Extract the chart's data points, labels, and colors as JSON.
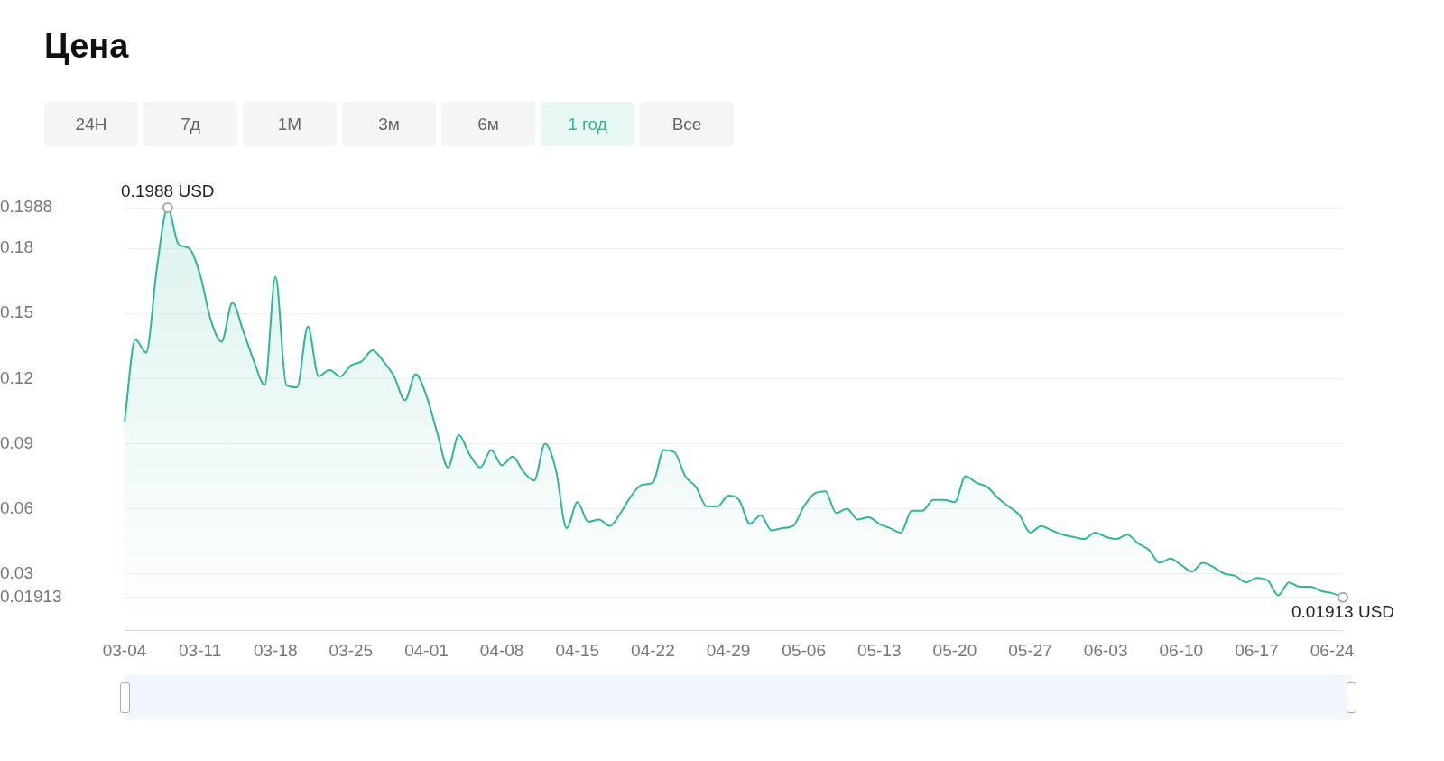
{
  "chart_data": {
    "type": "area",
    "title": "Цена",
    "annotations": [
      "24H",
      "7д",
      "1M",
      "3м",
      "6м",
      "1 год",
      "Все",
      {
        "text": "0.1988 USD",
        "y": 0.1988
      },
      {
        "text": "0.01913 USD",
        "y": 0.01913
      }
    ],
    "categories": [
      "03-04",
      null,
      null,
      null,
      null,
      null,
      null,
      "03-11",
      null,
      null,
      null,
      null,
      null,
      null,
      "03-18",
      null,
      null,
      null,
      null,
      null,
      null,
      "03-25",
      null,
      null,
      null,
      null,
      null,
      null,
      "04-01",
      null,
      null,
      null,
      null,
      null,
      null,
      "04-08",
      null,
      null,
      null,
      null,
      null,
      null,
      "04-15",
      null,
      null,
      null,
      null,
      null,
      null,
      "04-22",
      null,
      null,
      null,
      null,
      null,
      null,
      "04-29",
      null,
      null,
      null,
      null,
      null,
      null,
      "05-06",
      null,
      null,
      null,
      null,
      null,
      null,
      "05-13",
      null,
      null,
      null,
      null,
      null,
      null,
      "05-20",
      null,
      null,
      null,
      null,
      null,
      null,
      "05-27",
      null,
      null,
      null,
      null,
      null,
      null,
      "06-03",
      null,
      null,
      null,
      null,
      null,
      null,
      "06-10",
      null,
      null,
      null,
      null,
      null,
      null,
      "06-17",
      null,
      null,
      null,
      null,
      null,
      null,
      "06-24",
      null
    ],
    "series": [
      {
        "color": "#30b59c",
        "values": [
          0.1,
          0.138,
          0.132,
          0.171,
          0.1988,
          0.182,
          0.18,
          0.168,
          0.147,
          0.137,
          0.155,
          0.142,
          0.128,
          0.117,
          0.167,
          0.117,
          0.116,
          0.144,
          0.121,
          0.124,
          0.121,
          0.126,
          0.128,
          0.133,
          0.128,
          0.121,
          0.11,
          0.122,
          0.112,
          0.095,
          0.079,
          0.094,
          0.085,
          0.079,
          0.087,
          0.08,
          0.084,
          0.077,
          0.073,
          0.09,
          0.078,
          0.051,
          0.063,
          0.054,
          0.055,
          0.052,
          0.058,
          0.066,
          0.071,
          0.072,
          0.087,
          0.086,
          0.075,
          0.07,
          0.061,
          0.061,
          0.066,
          0.064,
          0.053,
          0.057,
          0.05,
          0.051,
          0.052,
          0.061,
          0.067,
          0.068,
          0.058,
          0.06,
          0.055,
          0.056,
          0.053,
          0.051,
          0.049,
          0.059,
          0.059,
          0.064,
          0.064,
          0.063,
          0.075,
          0.072,
          0.07,
          0.065,
          0.061,
          0.057,
          0.049,
          0.052,
          0.05,
          0.048,
          0.047,
          0.046,
          0.049,
          0.047,
          0.046,
          0.048,
          0.044,
          0.041,
          0.035,
          0.037,
          0.034,
          0.031,
          0.035,
          0.033,
          0.03,
          0.029,
          0.026,
          0.028,
          0.027,
          0.02,
          0.026,
          0.024,
          0.024,
          0.022,
          0.021,
          0.01913
        ]
      }
    ],
    "ylim": [
      0.004,
      0.1988
    ],
    "yticks": [
      0.01913,
      0.03,
      0.06,
      0.09,
      0.12,
      0.15,
      0.18,
      0.1988
    ],
    "grid": "y",
    "legend": false,
    "marker": "none",
    "line_style": "solid"
  }
}
